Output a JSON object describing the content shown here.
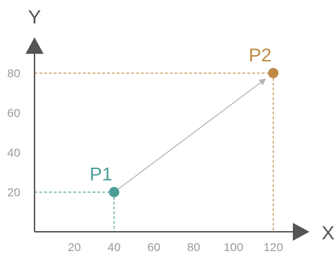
{
  "chart_data": {
    "type": "scatter",
    "xlabel": "X",
    "ylabel": "Y",
    "xlim": [
      0,
      130
    ],
    "ylim": [
      0,
      100
    ],
    "xticks": [
      20,
      40,
      60,
      80,
      100,
      120
    ],
    "yticks": [
      20,
      40,
      60,
      80
    ],
    "grid": false,
    "points": [
      {
        "label": "P1",
        "x": 40,
        "y": 20,
        "color": "#4a9e96"
      },
      {
        "label": "P2",
        "x": 120,
        "y": 80,
        "color": "#c08a45"
      }
    ],
    "arrow": {
      "from": "P1",
      "to": "P2",
      "color": "#b5b5b5"
    }
  },
  "colors": {
    "axis": "#555555",
    "tick_text": "#9a9a9a"
  }
}
